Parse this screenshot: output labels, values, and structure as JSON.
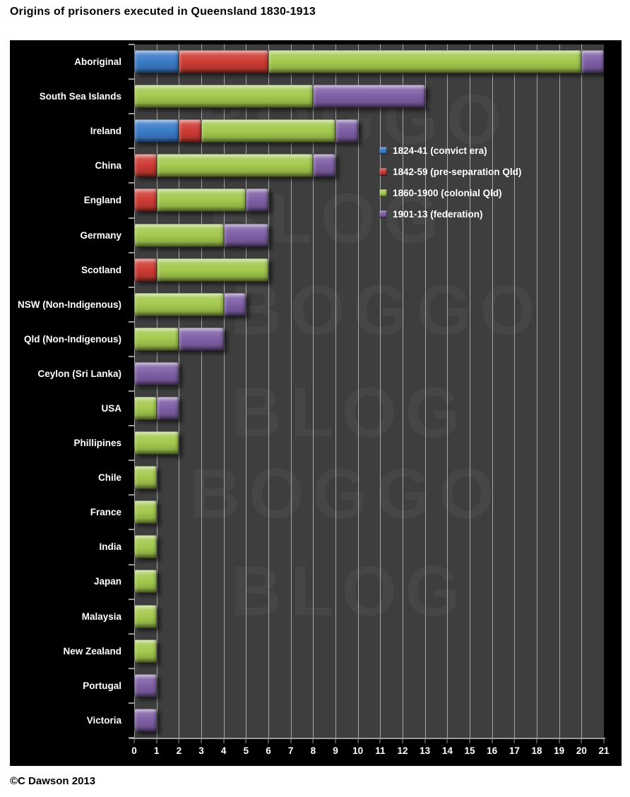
{
  "page": {
    "title": "Origins of prisoners executed in Queensland 1830-1913",
    "credit": "©C Dawson 2013"
  },
  "watermark": {
    "texts": [
      "BOGGO",
      "BLOG",
      "BOGGO",
      "BLOG",
      "BOGGO",
      "BLOG"
    ]
  },
  "colors": {
    "panel_bg": "#000000",
    "plot_bg": "#3e3e3e",
    "gridline": "#a8a8a8",
    "axis": "#9a9a9a",
    "text_light": "#ffffff",
    "text_dark": "#000000"
  },
  "chart_data": {
    "type": "bar",
    "orientation": "horizontal",
    "stacked": true,
    "title": "Origins of prisoners executed in Queensland 1830-1913",
    "xlabel": "",
    "ylabel": "",
    "xlim": [
      0,
      21
    ],
    "x_ticks": [
      0,
      1,
      2,
      3,
      4,
      5,
      6,
      7,
      8,
      9,
      10,
      11,
      12,
      13,
      14,
      15,
      16,
      17,
      18,
      19,
      20,
      21
    ],
    "grid": "vertical",
    "legend_position": "inside-top-right",
    "categories": [
      "Aboriginal",
      "South Sea Islands",
      "Ireland",
      "China",
      "England",
      "Germany",
      "Scotland",
      "NSW (Non-Indigenous)",
      "Qld (Non-Indigenous)",
      "Ceylon (Sri Lanka)",
      "USA",
      "Phillipines",
      "Chile",
      "France",
      "India",
      "Japan",
      "Malaysia",
      "New Zealand",
      "Portugal",
      "Victoria"
    ],
    "series": [
      {
        "name": "1824-41 (convict era)",
        "color": "#3a7bc8",
        "values": [
          2,
          0,
          2,
          0,
          0,
          0,
          0,
          0,
          0,
          0,
          0,
          0,
          0,
          0,
          0,
          0,
          0,
          0,
          0,
          0
        ]
      },
      {
        "name": "1842-59 (pre-separation Qld)",
        "color": "#cd3b34",
        "values": [
          4,
          0,
          1,
          1,
          1,
          0,
          1,
          0,
          0,
          0,
          0,
          0,
          0,
          0,
          0,
          0,
          0,
          0,
          0,
          0
        ]
      },
      {
        "name": "1860-1900 (colonial Qld)",
        "color": "#a3c94e",
        "values": [
          14,
          8,
          6,
          7,
          4,
          4,
          5,
          4,
          2,
          0,
          1,
          2,
          1,
          1,
          1,
          1,
          1,
          1,
          0,
          0
        ]
      },
      {
        "name": "1901-13 (federation)",
        "color": "#7e5fa5",
        "values": [
          1,
          5,
          1,
          1,
          1,
          2,
          0,
          1,
          2,
          2,
          1,
          0,
          0,
          0,
          0,
          0,
          0,
          0,
          1,
          1
        ]
      }
    ]
  }
}
